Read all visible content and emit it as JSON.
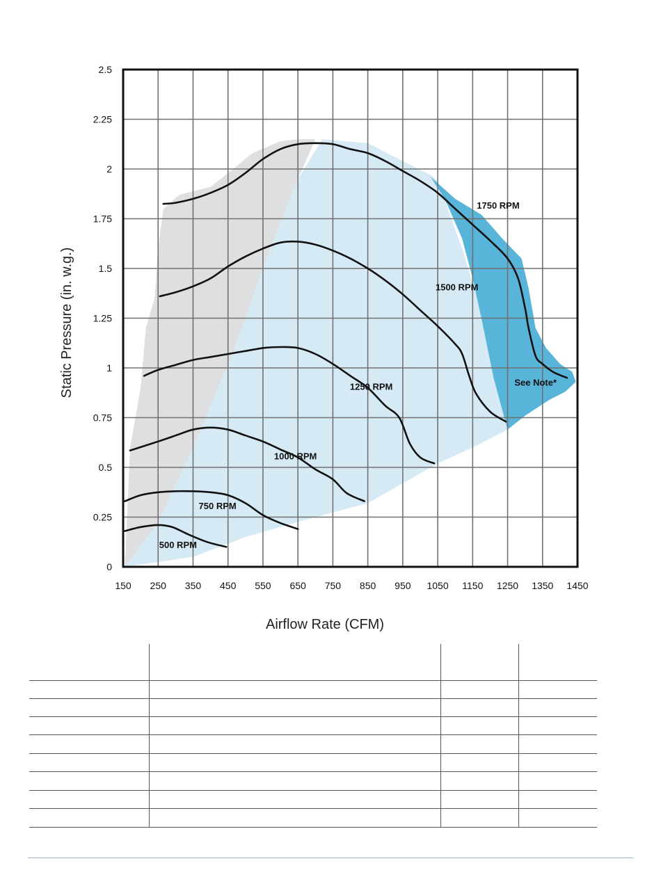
{
  "colors": {
    "region_gray": "#dedfe1",
    "region_light_blue": "#d6eaf5",
    "region_blue": "#58b4d9",
    "curve": "#111111",
    "grid": "#707070",
    "footer_rule": "#9fb4d6"
  },
  "chart_data": {
    "type": "line",
    "xlabel": "Airflow Rate (CFM)",
    "ylabel": "Static Pressure (in. w.g.)",
    "xlim": [
      150,
      1450
    ],
    "ylim": [
      0,
      2.5
    ],
    "x_ticks": [
      "150",
      "250",
      "350",
      "450",
      "550",
      "650",
      "750",
      "850",
      "950",
      "1050",
      "1150",
      "1250",
      "1350",
      "1450"
    ],
    "y_ticks": [
      "0",
      "0.25",
      "0.5",
      "0.75",
      "1",
      "1.25",
      "1.5",
      "1.75",
      "2",
      "2.25",
      "2.5"
    ],
    "grid": true,
    "series": [
      {
        "name": "500 RPM",
        "points": [
          [
            155,
            0.18
          ],
          [
            200,
            0.2
          ],
          [
            250,
            0.21
          ],
          [
            290,
            0.2
          ],
          [
            340,
            0.16
          ],
          [
            390,
            0.125
          ],
          [
            445,
            0.1
          ]
        ]
      },
      {
        "name": "750 RPM",
        "points": [
          [
            155,
            0.33
          ],
          [
            200,
            0.36
          ],
          [
            250,
            0.375
          ],
          [
            300,
            0.38
          ],
          [
            350,
            0.38
          ],
          [
            400,
            0.375
          ],
          [
            450,
            0.36
          ],
          [
            500,
            0.32
          ],
          [
            550,
            0.26
          ],
          [
            600,
            0.22
          ],
          [
            650,
            0.19
          ]
        ]
      },
      {
        "name": "1000 RPM",
        "points": [
          [
            170,
            0.585
          ],
          [
            250,
            0.63
          ],
          [
            300,
            0.66
          ],
          [
            350,
            0.69
          ],
          [
            400,
            0.7
          ],
          [
            450,
            0.69
          ],
          [
            500,
            0.66
          ],
          [
            550,
            0.63
          ],
          [
            600,
            0.59
          ],
          [
            650,
            0.55
          ],
          [
            700,
            0.49
          ],
          [
            750,
            0.44
          ],
          [
            790,
            0.37
          ],
          [
            840,
            0.33
          ]
        ]
      },
      {
        "name": "1250 RPM",
        "points": [
          [
            210,
            0.96
          ],
          [
            250,
            0.99
          ],
          [
            300,
            1.015
          ],
          [
            350,
            1.04
          ],
          [
            400,
            1.055
          ],
          [
            450,
            1.07
          ],
          [
            500,
            1.085
          ],
          [
            550,
            1.1
          ],
          [
            600,
            1.105
          ],
          [
            650,
            1.1
          ],
          [
            700,
            1.07
          ],
          [
            750,
            1.02
          ],
          [
            800,
            0.96
          ],
          [
            850,
            0.9
          ],
          [
            900,
            0.81
          ],
          [
            940,
            0.75
          ],
          [
            970,
            0.62
          ],
          [
            1000,
            0.55
          ],
          [
            1040,
            0.52
          ]
        ]
      },
      {
        "name": "1500 RPM",
        "points": [
          [
            255,
            1.36
          ],
          [
            300,
            1.38
          ],
          [
            350,
            1.41
          ],
          [
            400,
            1.45
          ],
          [
            450,
            1.51
          ],
          [
            500,
            1.56
          ],
          [
            550,
            1.6
          ],
          [
            600,
            1.63
          ],
          [
            650,
            1.635
          ],
          [
            700,
            1.62
          ],
          [
            750,
            1.59
          ],
          [
            800,
            1.55
          ],
          [
            850,
            1.5
          ],
          [
            900,
            1.44
          ],
          [
            950,
            1.37
          ],
          [
            1000,
            1.29
          ],
          [
            1050,
            1.21
          ],
          [
            1100,
            1.12
          ],
          [
            1120,
            1.07
          ],
          [
            1140,
            0.96
          ],
          [
            1160,
            0.87
          ],
          [
            1200,
            0.78
          ],
          [
            1245,
            0.73
          ]
        ]
      },
      {
        "name": "1750 RPM",
        "points": [
          [
            265,
            1.825
          ],
          [
            300,
            1.83
          ],
          [
            350,
            1.85
          ],
          [
            400,
            1.88
          ],
          [
            450,
            1.92
          ],
          [
            500,
            1.98
          ],
          [
            550,
            2.05
          ],
          [
            600,
            2.1
          ],
          [
            650,
            2.125
          ],
          [
            700,
            2.13
          ],
          [
            750,
            2.125
          ],
          [
            800,
            2.1
          ],
          [
            850,
            2.08
          ],
          [
            900,
            2.04
          ],
          [
            950,
            1.99
          ],
          [
            1000,
            1.94
          ],
          [
            1050,
            1.88
          ],
          [
            1100,
            1.8
          ],
          [
            1150,
            1.72
          ],
          [
            1200,
            1.64
          ],
          [
            1250,
            1.55
          ],
          [
            1280,
            1.45
          ],
          [
            1300,
            1.3
          ],
          [
            1310,
            1.2
          ],
          [
            1330,
            1.06
          ],
          [
            1350,
            1.02
          ],
          [
            1380,
            0.98
          ],
          [
            1420,
            0.95
          ]
        ]
      }
    ],
    "regions": [
      {
        "name": "gray",
        "polygon": [
          [
            155,
            0
          ],
          [
            170,
            0.6
          ],
          [
            200,
            0.9
          ],
          [
            215,
            1.2
          ],
          [
            240,
            1.35
          ],
          [
            250,
            1.6
          ],
          [
            265,
            1.8
          ],
          [
            310,
            1.87
          ],
          [
            400,
            1.91
          ],
          [
            450,
            1.98
          ],
          [
            520,
            2.08
          ],
          [
            600,
            2.14
          ],
          [
            650,
            2.15
          ],
          [
            700,
            2.15
          ],
          [
            650,
            1.95
          ],
          [
            560,
            1.55
          ],
          [
            470,
            1.1
          ],
          [
            350,
            0.6
          ],
          [
            250,
            0.22
          ],
          [
            170,
            0
          ]
        ]
      },
      {
        "name": "light blue",
        "polygon": [
          [
            155,
            0
          ],
          [
            250,
            0.22
          ],
          [
            350,
            0.6
          ],
          [
            470,
            1.1
          ],
          [
            560,
            1.55
          ],
          [
            650,
            1.95
          ],
          [
            720,
            2.15
          ],
          [
            780,
            2.14
          ],
          [
            850,
            2.13
          ],
          [
            950,
            2.04
          ],
          [
            1030,
            1.97
          ],
          [
            1050,
            1.94
          ],
          [
            1120,
            1.6
          ],
          [
            1190,
            1.2
          ],
          [
            1250,
            0.69
          ],
          [
            1150,
            0.6
          ],
          [
            1050,
            0.52
          ],
          [
            850,
            0.32
          ],
          [
            700,
            0.25
          ],
          [
            500,
            0.15
          ],
          [
            350,
            0.05
          ]
        ]
      },
      {
        "name": "blue",
        "polygon": [
          [
            1030,
            1.96
          ],
          [
            1100,
            1.85
          ],
          [
            1175,
            1.77
          ],
          [
            1235,
            1.65
          ],
          [
            1290,
            1.55
          ],
          [
            1310,
            1.4
          ],
          [
            1330,
            1.2
          ],
          [
            1360,
            1.1
          ],
          [
            1400,
            1.02
          ],
          [
            1435,
            0.98
          ],
          [
            1445,
            0.93
          ],
          [
            1415,
            0.88
          ],
          [
            1370,
            0.84
          ],
          [
            1300,
            0.76
          ],
          [
            1250,
            0.69
          ],
          [
            1210,
            0.95
          ],
          [
            1175,
            1.25
          ],
          [
            1150,
            1.45
          ],
          [
            1120,
            1.65
          ],
          [
            1070,
            1.85
          ]
        ]
      }
    ],
    "annotations": [
      {
        "text": "500 RPM",
        "x": 307,
        "y": 0.095
      },
      {
        "text": "750 RPM",
        "x": 420,
        "y": 0.29
      },
      {
        "text": "1000 RPM",
        "x": 643,
        "y": 0.54
      },
      {
        "text": "1250 RPM",
        "x": 860,
        "y": 0.89
      },
      {
        "text": "1500 RPM",
        "x": 1105,
        "y": 1.39
      },
      {
        "text": "1750 RPM",
        "x": 1223,
        "y": 1.8
      },
      {
        "text": "See Note*",
        "x": 1330,
        "y": 0.91
      }
    ]
  }
}
